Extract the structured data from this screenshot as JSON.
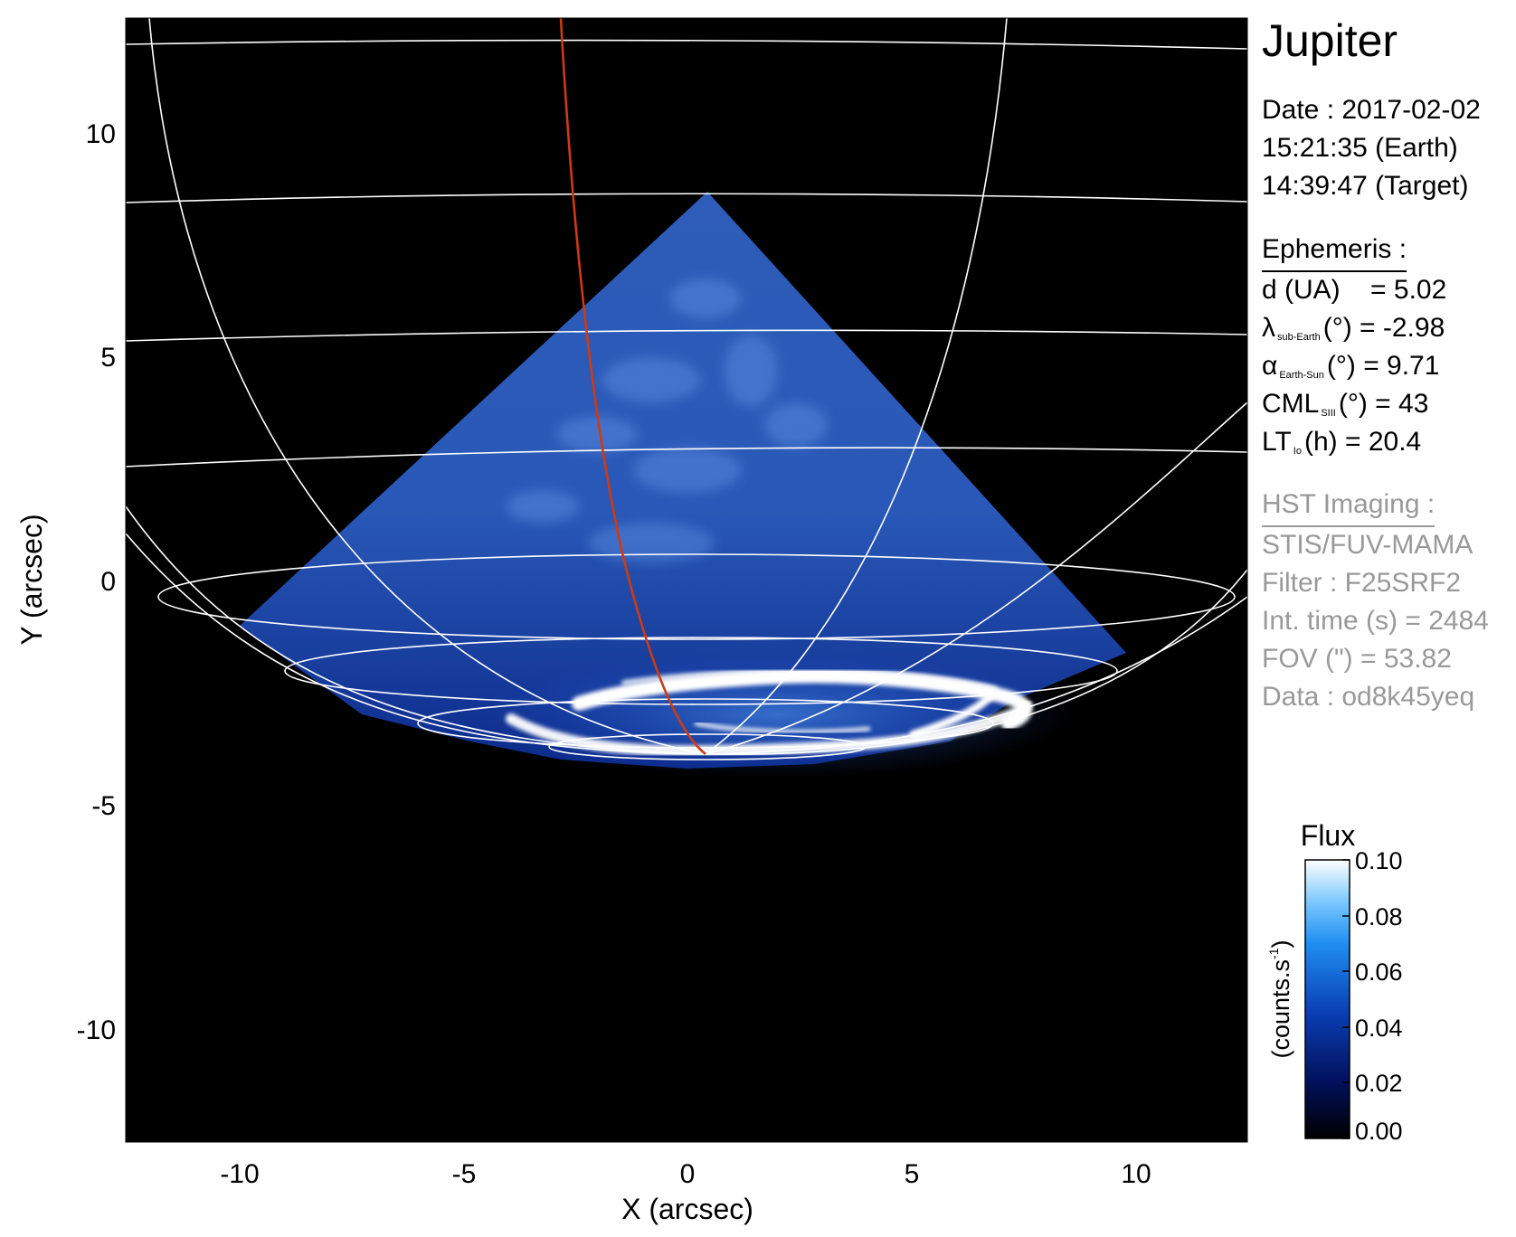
{
  "planet": "Jupiter",
  "obs": {
    "date_line": "Date : 2017-02-02",
    "earth_time": "15:21:35 (Earth)",
    "target_time": "14:39:47 (Target)"
  },
  "ephemeris": {
    "heading": "Ephemeris :",
    "d_label": "d (UA)",
    "d_value": "= 5.02",
    "lambda_sym": "λ",
    "lambda_sub": "sub-Earth",
    "lambda_rest": "(°) = -2.98",
    "alpha_sym": "α",
    "alpha_sub": "Earth-Sun",
    "alpha_rest": "(°) = 9.71",
    "cml_sym": "CML",
    "cml_sub": "SIII",
    "cml_rest": "(°) = 43",
    "lt_sym": "LT",
    "lt_sub": "Io",
    "lt_rest": "(h) = 20.4"
  },
  "hst": {
    "heading": "HST Imaging :",
    "instrument": "STIS/FUV-MAMA",
    "filter": "Filter : F25SRF2",
    "int_time": "Int. time (s) = 2484",
    "fov": "FOV (\") = 53.82",
    "data": "Data : od8k45yeq"
  },
  "axes": {
    "x_title": "X (arcsec)",
    "y_title": "Y (arcsec)",
    "x_ticks": [
      "-10",
      "-5",
      "0",
      "5",
      "10"
    ],
    "y_ticks": [
      "10",
      "5",
      "0",
      "-5",
      "-10"
    ]
  },
  "colorbar": {
    "title": "Flux",
    "units": "(counts.s",
    "units_exp": "-1",
    "units_close": ")",
    "ticks": [
      "0.10",
      "0.08",
      "0.06",
      "0.04",
      "0.02",
      "0.00"
    ]
  },
  "colors": {
    "background": "#000000",
    "grid": "#ffffff",
    "meridian": "#d03a10",
    "wedge": "#2a5ecc",
    "aurora": "#ffffff",
    "secondary_text": "#999999"
  }
}
